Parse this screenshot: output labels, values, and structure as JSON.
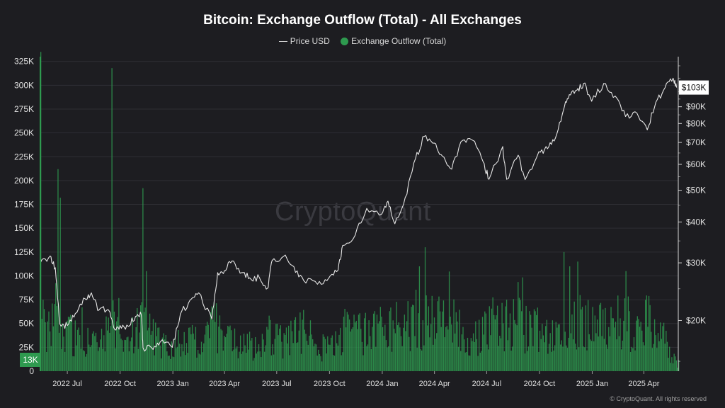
{
  "chart_data": {
    "type": "line",
    "title": "Bitcoin: Exchange Outflow (Total) - All Exchanges",
    "legend": {
      "placement": "top-center",
      "entries": [
        "Price USD",
        "Exchange Outflow (Total)"
      ]
    },
    "watermark": "CryptoQuant",
    "copyright": "© CryptoQuant. All rights reserved",
    "x_ticks": [
      "2022 Jul",
      "2022 Oct",
      "2023 Jan",
      "2023 Apr",
      "2023 Jul",
      "2023 Oct",
      "2024 Jan",
      "2024 Apr",
      "2024 Jul",
      "2024 Oct",
      "2025 Jan",
      "2025 Apr"
    ],
    "y_left": {
      "ticks": [
        "0",
        "25K",
        "50K",
        "75K",
        "100K",
        "125K",
        "150K",
        "175K",
        "200K",
        "225K",
        "250K",
        "275K",
        "300K",
        "325K"
      ],
      "ylim": [
        0,
        330000
      ]
    },
    "y_right": {
      "scale": "log",
      "ticks": [
        "$20K",
        "$30K",
        "$40K",
        "$50K",
        "$60K",
        "$70K",
        "$80K",
        "$90K"
      ],
      "current_label": "$103K"
    },
    "current_outflow_label": "13K",
    "series": [
      {
        "name": "Price USD",
        "color": "#e6e6e6",
        "points": [
          [
            "2022-05-15",
            30000
          ],
          [
            "2022-06-01",
            31500
          ],
          [
            "2022-06-10",
            29000
          ],
          [
            "2022-06-18",
            19500
          ],
          [
            "2022-07-01",
            19300
          ],
          [
            "2022-07-15",
            21000
          ],
          [
            "2022-08-01",
            23300
          ],
          [
            "2022-08-12",
            24300
          ],
          [
            "2022-08-25",
            21500
          ],
          [
            "2022-09-10",
            21600
          ],
          [
            "2022-09-20",
            19000
          ],
          [
            "2022-10-01",
            19300
          ],
          [
            "2022-10-15",
            19200
          ],
          [
            "2022-10-28",
            20600
          ],
          [
            "2022-11-07",
            20800
          ],
          [
            "2022-11-10",
            16500
          ],
          [
            "2022-11-25",
            16500
          ],
          [
            "2022-12-10",
            17200
          ],
          [
            "2022-12-31",
            16550
          ],
          [
            "2023-01-14",
            20900
          ],
          [
            "2023-01-31",
            23100
          ],
          [
            "2023-02-15",
            24300
          ],
          [
            "2023-03-10",
            20200
          ],
          [
            "2023-03-20",
            28000
          ],
          [
            "2023-04-01",
            28400
          ],
          [
            "2023-04-14",
            30400
          ],
          [
            "2023-05-01",
            28000
          ],
          [
            "2023-05-15",
            27000
          ],
          [
            "2023-06-01",
            27000
          ],
          [
            "2023-06-15",
            25100
          ],
          [
            "2023-06-23",
            30500
          ],
          [
            "2023-07-13",
            31400
          ],
          [
            "2023-07-31",
            29200
          ],
          [
            "2023-08-17",
            26500
          ],
          [
            "2023-09-10",
            25800
          ],
          [
            "2023-09-30",
            27000
          ],
          [
            "2023-10-16",
            28500
          ],
          [
            "2023-10-24",
            33900
          ],
          [
            "2023-11-15",
            36500
          ],
          [
            "2023-12-05",
            44000
          ],
          [
            "2023-12-31",
            42300
          ],
          [
            "2024-01-11",
            46300
          ],
          [
            "2024-01-23",
            39500
          ],
          [
            "2024-02-10",
            47500
          ],
          [
            "2024-02-28",
            62500
          ],
          [
            "2024-03-14",
            73000
          ],
          [
            "2024-04-01",
            69700
          ],
          [
            "2024-04-15",
            63500
          ],
          [
            "2024-05-01",
            58000
          ],
          [
            "2024-05-20",
            71000
          ],
          [
            "2024-06-07",
            71000
          ],
          [
            "2024-06-25",
            61000
          ],
          [
            "2024-07-05",
            54000
          ],
          [
            "2024-07-29",
            68000
          ],
          [
            "2024-08-05",
            54000
          ],
          [
            "2024-08-25",
            64000
          ],
          [
            "2024-09-06",
            53900
          ],
          [
            "2024-09-30",
            65600
          ],
          [
            "2024-10-15",
            67000
          ],
          [
            "2024-10-29",
            72300
          ],
          [
            "2024-11-12",
            88000
          ],
          [
            "2024-11-22",
            98000
          ],
          [
            "2024-12-05",
            101000
          ],
          [
            "2024-12-17",
            106000
          ],
          [
            "2024-12-31",
            93500
          ],
          [
            "2025-01-21",
            106000
          ],
          [
            "2025-02-10",
            97000
          ],
          [
            "2025-02-28",
            84000
          ],
          [
            "2025-03-20",
            86000
          ],
          [
            "2025-04-07",
            76500
          ],
          [
            "2025-04-22",
            93000
          ],
          [
            "2025-05-08",
            103000
          ],
          [
            "2025-05-22",
            110000
          ],
          [
            "2025-05-28",
            103000
          ]
        ]
      },
      {
        "name": "Exchange Outflow (Total)",
        "color": "#2e9a4f",
        "points": [
          [
            "2022-05-15",
            335000
          ],
          [
            "2022-05-25",
            70000
          ],
          [
            "2022-06-13",
            212000
          ],
          [
            "2022-06-18",
            182000
          ],
          [
            "2022-06-28",
            70000
          ],
          [
            "2022-07-15",
            55000
          ],
          [
            "2022-08-01",
            50000
          ],
          [
            "2022-08-15",
            48000
          ],
          [
            "2022-09-01",
            52000
          ],
          [
            "2022-09-13",
            85000
          ],
          [
            "2022-09-15",
            318000
          ],
          [
            "2022-09-25",
            60000
          ],
          [
            "2022-10-10",
            45000
          ],
          [
            "2022-10-25",
            50000
          ],
          [
            "2022-11-09",
            192000
          ],
          [
            "2022-11-14",
            105000
          ],
          [
            "2022-11-25",
            60000
          ],
          [
            "2022-12-15",
            45000
          ],
          [
            "2023-01-01",
            40000
          ],
          [
            "2023-01-15",
            55000
          ],
          [
            "2023-02-01",
            50000
          ],
          [
            "2023-02-20",
            45000
          ],
          [
            "2023-03-13",
            75000
          ],
          [
            "2023-04-01",
            50000
          ],
          [
            "2023-05-01",
            45000
          ],
          [
            "2023-06-01",
            40000
          ],
          [
            "2023-06-15",
            60000
          ],
          [
            "2023-07-15",
            50000
          ],
          [
            "2023-08-17",
            65000
          ],
          [
            "2023-09-15",
            40000
          ],
          [
            "2023-10-15",
            45000
          ],
          [
            "2023-10-25",
            70000
          ],
          [
            "2023-11-15",
            60000
          ],
          [
            "2023-12-15",
            65000
          ],
          [
            "2024-01-11",
            95000
          ],
          [
            "2024-02-01",
            70000
          ],
          [
            "2024-03-05",
            110000
          ],
          [
            "2024-03-14",
            130000
          ],
          [
            "2024-04-01",
            100000
          ],
          [
            "2024-04-15",
            90000
          ],
          [
            "2024-05-15",
            70000
          ],
          [
            "2024-06-15",
            60000
          ],
          [
            "2024-07-05",
            80000
          ],
          [
            "2024-08-05",
            95000
          ],
          [
            "2024-09-05",
            70000
          ],
          [
            "2024-10-15",
            65000
          ],
          [
            "2024-11-12",
            125000
          ],
          [
            "2024-11-22",
            110000
          ],
          [
            "2024-12-05",
            115000
          ],
          [
            "2024-12-17",
            100000
          ],
          [
            "2025-01-15",
            90000
          ],
          [
            "2025-02-01",
            85000
          ],
          [
            "2025-02-28",
            105000
          ],
          [
            "2025-03-15",
            70000
          ],
          [
            "2025-04-07",
            90000
          ],
          [
            "2025-05-01",
            60000
          ],
          [
            "2025-05-28",
            13000
          ]
        ]
      }
    ]
  }
}
